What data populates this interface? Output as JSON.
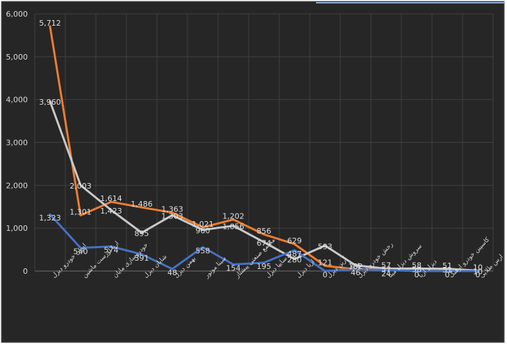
{
  "chart_data": {
    "type": "line",
    "title": "",
    "xlabel": "",
    "ylabel": "",
    "ylim": [
      0,
      6000
    ],
    "yticks": [
      0,
      1000,
      2000,
      3000,
      4000,
      5000,
      6000
    ],
    "ytick_labels": [
      "0",
      "1,000",
      "2,000",
      "3,000",
      "4,000",
      "5,000",
      "6,000"
    ],
    "grid": true,
    "legend": "none",
    "categories": [
      "ایران خودرو دیزل",
      "اریا اورست ماشین",
      "خودروسازی مایان",
      "شایان دیزل",
      "بهمن دیزل",
      "سینا موتور",
      "مجتمع صنعتی پیشتاز",
      "سایپا دیزل",
      "اریا دیزل",
      "آرین دیزل",
      "رخش خودرو دیزل",
      "سروش دیزل مینا",
      "دیزل آریا",
      "کاسپین خودرو ارهنگ",
      "ارس طلایی"
    ],
    "series": [
      {
        "name": "orange",
        "color": "#ED7D31",
        "values": [
          5712,
          1301,
          1614,
          1486,
          1363,
          1021,
          1202,
          856,
          629,
          121,
          44,
          57,
          58,
          51,
          10
        ],
        "labels": [
          "5,712",
          "1,301",
          "1,614",
          "1,486",
          "1,363",
          "1,021",
          "1,202",
          "856",
          "629",
          "121",
          "44",
          "57",
          "58",
          "51",
          "10"
        ]
      },
      {
        "name": "gray",
        "color": "#C9C9C9",
        "values": [
          3960,
          2003,
          1423,
          895,
          1303,
          960,
          1056,
          674,
          280,
          593,
          132,
          57,
          58,
          51,
          10
        ],
        "labels": [
          "3,960",
          "2,003",
          "1,423",
          "895",
          "1,303",
          "960",
          "1,056",
          "674",
          "280",
          "593",
          "132",
          "57",
          "58",
          "51",
          "10"
        ]
      },
      {
        "name": "blue",
        "color": "#4472C4",
        "values": [
          1323,
          540,
          574,
          391,
          48,
          558,
          154,
          195,
          487,
          0,
          46,
          24,
          0,
          0,
          0
        ],
        "labels": [
          "1,323",
          "540",
          "574",
          "391",
          "48",
          "558",
          "154",
          "195",
          "487",
          "0",
          "46",
          "24",
          "0",
          "0",
          "0"
        ]
      }
    ]
  }
}
